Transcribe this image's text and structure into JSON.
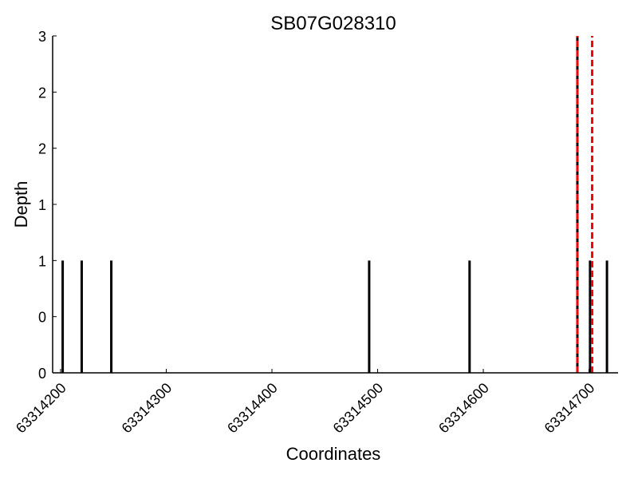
{
  "chart_data": {
    "type": "bar",
    "title": "SB07G028310",
    "xlabel": "Coordinates",
    "ylabel": "Depth",
    "xlim": [
      63314192.5,
      63314727.5
    ],
    "ylim": [
      0,
      3
    ],
    "grid": false,
    "x_ticks": [
      63314200,
      63314300,
      63314400,
      63314500,
      63314600,
      63314700
    ],
    "x_tick_labels": [
      "63314200",
      "63314300",
      "63314400",
      "63314500",
      "63314600",
      "63314700"
    ],
    "y_ticks": [
      0,
      0.5,
      1,
      1.5,
      2,
      2.5,
      3
    ],
    "y_tick_labels": [
      "0",
      "0",
      "1",
      "1",
      "2",
      "2",
      "3"
    ],
    "bars": [
      {
        "x": 63314202,
        "depth": 1
      },
      {
        "x": 63314220,
        "depth": 1
      },
      {
        "x": 63314248,
        "depth": 1
      },
      {
        "x": 63314492,
        "depth": 1
      },
      {
        "x": 63314587,
        "depth": 1
      },
      {
        "x": 63314689,
        "depth": 3
      },
      {
        "x": 63314701,
        "depth": 1
      },
      {
        "x": 63314717,
        "depth": 1
      }
    ],
    "markers": [
      {
        "x": 63314689,
        "style": "dashed",
        "color": "#ff0000"
      },
      {
        "x": 63314703,
        "style": "dashed",
        "color": "#ff0000"
      }
    ],
    "bar_color": "#000000"
  }
}
